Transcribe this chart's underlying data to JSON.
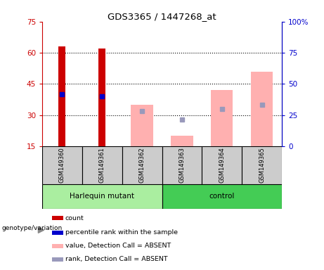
{
  "title": "GDS3365 / 1447268_at",
  "samples": [
    "GSM149360",
    "GSM149361",
    "GSM149362",
    "GSM149363",
    "GSM149364",
    "GSM149365"
  ],
  "ylim_left": [
    15,
    75
  ],
  "ylim_right": [
    0,
    100
  ],
  "yticks_left": [
    15,
    30,
    45,
    60,
    75
  ],
  "yticks_right": [
    0,
    25,
    50,
    75,
    100
  ],
  "ytick_labels_right": [
    "0",
    "25",
    "50",
    "75",
    "100%"
  ],
  "red_bars_bottom": [
    15,
    15,
    null,
    null,
    null,
    null
  ],
  "red_bars_top": [
    63,
    62,
    null,
    null,
    null,
    null
  ],
  "blue_markers_y": [
    40,
    39,
    null,
    null,
    null,
    null
  ],
  "pink_bars_bottom": [
    null,
    null,
    15,
    15,
    15,
    15
  ],
  "pink_bars_top": [
    null,
    null,
    35,
    20,
    42,
    51
  ],
  "light_blue_markers_y": [
    null,
    null,
    32,
    28,
    33,
    35
  ],
  "colors": {
    "red": "#cc0000",
    "blue": "#0000cc",
    "pink": "#ffb0b0",
    "light_blue": "#9999bb",
    "group_harlequin": "#aaeea0",
    "group_control": "#44cc55",
    "sample_bg": "#cccccc",
    "left_axis_color": "#cc0000",
    "right_axis_color": "#0000cc"
  },
  "legend_labels": [
    "count",
    "percentile rank within the sample",
    "value, Detection Call = ABSENT",
    "rank, Detection Call = ABSENT"
  ],
  "legend_colors": [
    "#cc0000",
    "#0000cc",
    "#ffb0b0",
    "#9999bb"
  ],
  "xlabel_genotype": "genotype/variation"
}
